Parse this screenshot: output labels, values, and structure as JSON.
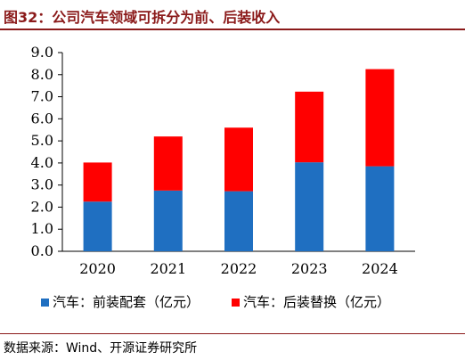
{
  "title": "图32：公司汽车领域可拆分为前、后装收入",
  "source": "数据来源：Wind、开源证券研究所",
  "chart_data": {
    "type": "bar",
    "stacked": true,
    "categories": [
      "2020",
      "2021",
      "2022",
      "2023",
      "2024"
    ],
    "series": [
      {
        "name": "汽车：前装配套（亿元）",
        "color": "#1F6FC1",
        "values": [
          2.25,
          2.75,
          2.72,
          4.03,
          3.85
        ]
      },
      {
        "name": "汽车：后装替换（亿元）",
        "color": "#FF0000",
        "values": [
          1.77,
          2.45,
          2.88,
          3.2,
          4.4
        ]
      }
    ],
    "ylim": [
      0,
      9
    ],
    "yticks": [
      "0.0",
      "1.0",
      "2.0",
      "3.0",
      "4.0",
      "5.0",
      "6.0",
      "7.0",
      "8.0",
      "9.0"
    ],
    "grid": false,
    "legend_position": "bottom"
  }
}
